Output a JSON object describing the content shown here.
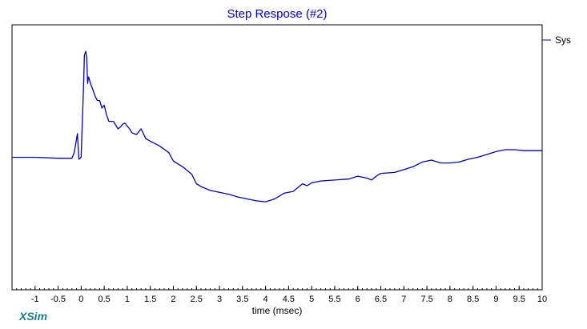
{
  "brand": "XSim",
  "chart_data": {
    "type": "line",
    "title": "Step Respose (#2)",
    "xlabel": "time (msec)",
    "ylabel": "",
    "xlim": [
      -1.5,
      10
    ],
    "ylim": [
      -1.4,
      1.4
    ],
    "x_ticks": [
      -1,
      -0.5,
      0,
      0.5,
      1,
      1.5,
      2,
      2.5,
      3,
      3.5,
      4,
      4.5,
      5,
      5.5,
      6,
      6.5,
      7,
      7.5,
      8,
      8.5,
      9,
      9.5,
      10
    ],
    "x_tick_labels": [
      "-1",
      "-0.5",
      "0",
      "0.5",
      "1",
      "1.5",
      "2",
      "2.5",
      "3",
      "3.5",
      "4",
      "4.5",
      "5",
      "5.5",
      "6",
      "6.5",
      "7",
      "7.5",
      "8",
      "8.5",
      "9",
      "9.5",
      "10"
    ],
    "grid": false,
    "legend_position": "top-right",
    "color": "#0000cc",
    "series": [
      {
        "name": "Sys",
        "x": [
          -1.5,
          -1.2,
          -1.0,
          -0.5,
          -0.2,
          -0.15,
          -0.08,
          -0.05,
          0.0,
          0.05,
          0.07,
          0.1,
          0.12,
          0.14,
          0.16,
          0.18,
          0.2,
          0.25,
          0.3,
          0.35,
          0.4,
          0.45,
          0.5,
          0.55,
          0.6,
          0.7,
          0.8,
          0.85,
          0.9,
          0.95,
          1.0,
          1.05,
          1.1,
          1.2,
          1.3,
          1.4,
          1.5,
          1.7,
          1.9,
          2.0,
          2.2,
          2.4,
          2.5,
          2.6,
          2.8,
          3.0,
          3.2,
          3.4,
          3.6,
          3.8,
          4.0,
          4.2,
          4.4,
          4.6,
          4.8,
          4.9,
          5.0,
          5.2,
          5.5,
          5.8,
          6.0,
          6.2,
          6.3,
          6.4,
          6.5,
          6.8,
          7.0,
          7.2,
          7.4,
          7.6,
          7.8,
          8.0,
          8.2,
          8.4,
          8.6,
          8.8,
          9.0,
          9.2,
          9.4,
          9.6,
          9.8,
          10.0
        ],
        "y": [
          0.0,
          0.0,
          0.0,
          -0.01,
          -0.01,
          0.05,
          0.25,
          -0.02,
          0.0,
          0.72,
          1.08,
          1.12,
          1.05,
          0.78,
          0.85,
          0.82,
          0.78,
          0.72,
          0.65,
          0.6,
          0.6,
          0.52,
          0.55,
          0.45,
          0.38,
          0.38,
          0.3,
          0.32,
          0.35,
          0.36,
          0.33,
          0.3,
          0.26,
          0.24,
          0.3,
          0.2,
          0.17,
          0.12,
          0.05,
          -0.04,
          -0.1,
          -0.18,
          -0.28,
          -0.31,
          -0.35,
          -0.37,
          -0.39,
          -0.42,
          -0.44,
          -0.46,
          -0.47,
          -0.44,
          -0.38,
          -0.36,
          -0.28,
          -0.3,
          -0.27,
          -0.25,
          -0.24,
          -0.23,
          -0.2,
          -0.22,
          -0.24,
          -0.2,
          -0.17,
          -0.16,
          -0.13,
          -0.1,
          -0.05,
          -0.03,
          -0.06,
          -0.06,
          -0.05,
          -0.02,
          0.0,
          0.03,
          0.06,
          0.08,
          0.08,
          0.07,
          0.07,
          0.07
        ]
      }
    ]
  }
}
